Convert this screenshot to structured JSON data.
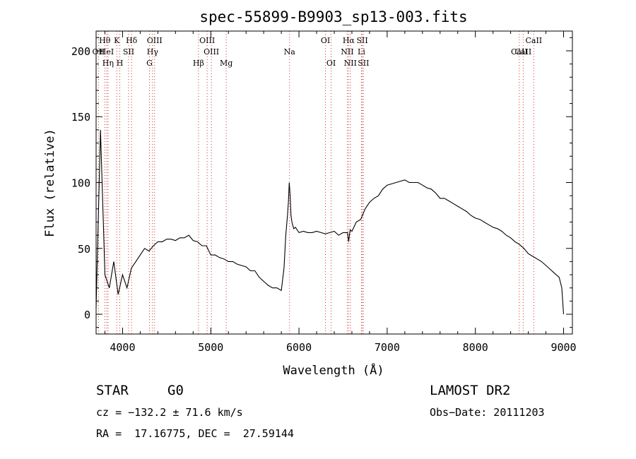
{
  "chart_data": {
    "type": "line",
    "title": "spec-55899-B9903_sp13-003.fits",
    "xlabel": "Wavelength (Å)",
    "ylabel": "Flux (relative)",
    "xlim": [
      3700,
      9100
    ],
    "ylim": [
      -15,
      215
    ],
    "x_ticks": [
      4000,
      5000,
      6000,
      7000,
      8000,
      9000
    ],
    "y_ticks": [
      0,
      50,
      100,
      150,
      200
    ],
    "series": [
      {
        "x": [
          3700,
          3750,
          3800,
          3850,
          3900,
          3950,
          4000,
          4050,
          4100,
          4150,
          4200,
          4250,
          4300,
          4350,
          4400,
          4450,
          4500,
          4550,
          4600,
          4650,
          4700,
          4750,
          4800,
          4850,
          4900,
          4950,
          5000,
          5050,
          5100,
          5150,
          5200,
          5250,
          5300,
          5350,
          5400,
          5450,
          5500,
          5550,
          5600,
          5650,
          5700,
          5750,
          5800,
          5830,
          5850,
          5870,
          5880,
          5890,
          5900,
          5910,
          5920,
          5940,
          5960,
          6000,
          6050,
          6100,
          6150,
          6200,
          6250,
          6300,
          6350,
          6400,
          6450,
          6500,
          6550,
          6563,
          6580,
          6600,
          6650,
          6700,
          6750,
          6800,
          6850,
          6900,
          6950,
          7000,
          7050,
          7100,
          7150,
          7200,
          7250,
          7300,
          7350,
          7400,
          7450,
          7500,
          7550,
          7600,
          7650,
          7700,
          7750,
          7800,
          7850,
          7900,
          7950,
          8000,
          8050,
          8100,
          8150,
          8200,
          8250,
          8300,
          8350,
          8400,
          8450,
          8500,
          8550,
          8600,
          8650,
          8700,
          8750,
          8800,
          8850,
          8900,
          8950,
          8980,
          9000
        ],
        "y": [
          5,
          140,
          30,
          20,
          40,
          15,
          30,
          20,
          35,
          40,
          45,
          50,
          48,
          52,
          55,
          55,
          57,
          57,
          56,
          58,
          58,
          60,
          56,
          55,
          52,
          52,
          45,
          45,
          43,
          42,
          40,
          40,
          38,
          37,
          36,
          33,
          33,
          28,
          25,
          22,
          20,
          20,
          18,
          35,
          60,
          75,
          85,
          100,
          90,
          75,
          70,
          65,
          66,
          62,
          63,
          62,
          62,
          63,
          62,
          61,
          62,
          63,
          60,
          62,
          62,
          55,
          64,
          63,
          70,
          72,
          80,
          85,
          88,
          90,
          95,
          98,
          99,
          100,
          101,
          102,
          100,
          100,
          100,
          98,
          96,
          95,
          92,
          88,
          88,
          86,
          84,
          82,
          80,
          78,
          75,
          73,
          72,
          70,
          68,
          66,
          65,
          63,
          60,
          58,
          55,
          53,
          50,
          46,
          44,
          42,
          40,
          37,
          34,
          31,
          28,
          20,
          0
        ]
      }
    ],
    "lines_markers": [
      {
        "label": "OII",
        "x": 3727,
        "row": 1
      },
      {
        "label": "Hθ",
        "x": 3798,
        "row": 0
      },
      {
        "label": "HeI",
        "x": 3820,
        "row": 1
      },
      {
        "label": "Hη",
        "x": 3835,
        "row": 2
      },
      {
        "label": "K",
        "x": 3934,
        "row": 0
      },
      {
        "label": "SII",
        "x": 4068,
        "row": 1
      },
      {
        "label": "H",
        "x": 3969,
        "row": 2
      },
      {
        "label": "Hδ",
        "x": 4102,
        "row": 0
      },
      {
        "label": "OIII",
        "x": 4363,
        "row": 0
      },
      {
        "label": "Hγ",
        "x": 4340,
        "row": 1
      },
      {
        "label": "G",
        "x": 4305,
        "row": 2
      },
      {
        "label": "OIII",
        "x": 4959,
        "row": 0
      },
      {
        "label": "OIII",
        "x": 5007,
        "row": 1
      },
      {
        "label": "Hβ",
        "x": 4861,
        "row": 2
      },
      {
        "label": "Mg",
        "x": 5175,
        "row": 2
      },
      {
        "label": "Na",
        "x": 5893,
        "row": 1
      },
      {
        "label": "OI",
        "x": 6300,
        "row": 0
      },
      {
        "label": "OI",
        "x": 6364,
        "row": 2
      },
      {
        "label": "Hα",
        "x": 6563,
        "row": 0
      },
      {
        "label": "NII",
        "x": 6548,
        "row": 1
      },
      {
        "label": "NII",
        "x": 6583,
        "row": 2
      },
      {
        "label": "SII",
        "x": 6717,
        "row": 0
      },
      {
        "label": "Li",
        "x": 6708,
        "row": 1
      },
      {
        "label": "SII",
        "x": 6731,
        "row": 2
      },
      {
        "label": "CaII",
        "x": 8662,
        "row": 0
      },
      {
        "label": "CaII",
        "x": 8498,
        "row": 1
      },
      {
        "label": "CaII",
        "x": 8542,
        "row": 1
      }
    ],
    "grid": false
  },
  "info": {
    "object_class": "STAR",
    "subclass": "G0",
    "survey": "LAMOST DR2",
    "cz": "cz = −132.2 ± 71.6 km/s",
    "obs_date": "Obs−Date: 20111203",
    "coords": "RA =  17.16775, DEC =  27.59144"
  }
}
